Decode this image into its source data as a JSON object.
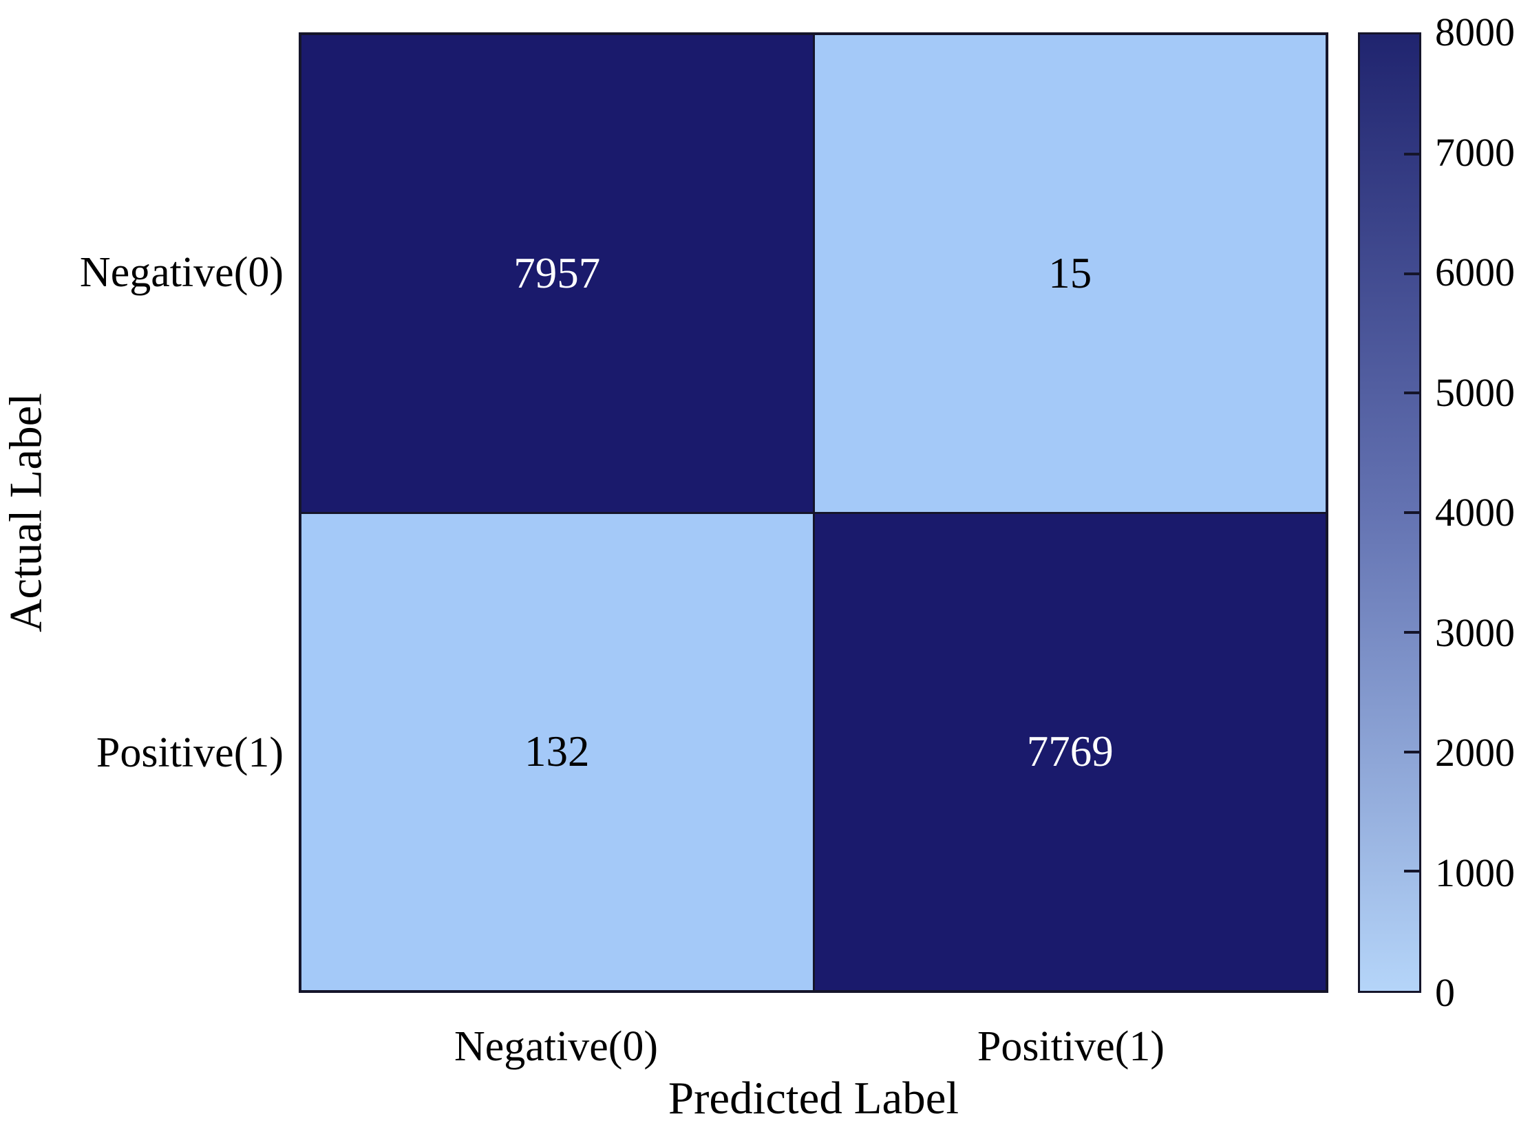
{
  "chart_data": {
    "type": "heatmap",
    "title": "",
    "xlabel": "Predicted Label",
    "ylabel": "Actual Label",
    "x_categories": [
      "Negative(0)",
      "Positive(1)"
    ],
    "y_categories": [
      "Negative(0)",
      "Positive(1)"
    ],
    "matrix": [
      [
        7957,
        15
      ],
      [
        132,
        7769
      ]
    ],
    "colorbar": {
      "min": 0,
      "max": 8000,
      "tick_values": [
        0,
        1000,
        2000,
        3000,
        4000,
        5000,
        6000,
        7000,
        8000
      ],
      "tick_labels": [
        "0",
        "1000",
        "2000",
        "3000",
        "4000",
        "5000",
        "6000",
        "7000",
        "8000"
      ],
      "position": "right",
      "gradient_low": "#b5d5f9",
      "gradient_mid": "#6473b2",
      "gradient_high": "#20246f"
    },
    "colors": {
      "cell_high": "#1a1a6c",
      "cell_low": "#a4c9f8",
      "text_on_high": "#ffffff",
      "text_on_low": "#000000",
      "frame": "#15152a"
    },
    "layout": {
      "grid": "off",
      "legend": "none"
    }
  }
}
